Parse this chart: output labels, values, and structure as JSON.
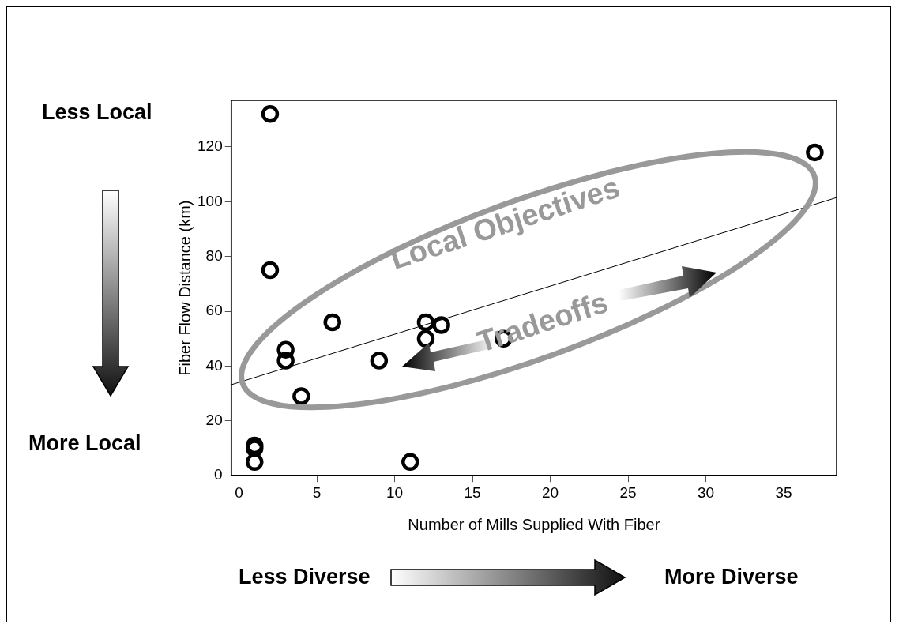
{
  "chart_data": {
    "type": "scatter",
    "xlabel": "Number of Mills Supplied With Fiber",
    "ylabel": "Fiber Flow Distance (km)",
    "xlim": [
      -0.5,
      38.4
    ],
    "ylim": [
      0,
      137
    ],
    "xticks": [
      0,
      5,
      10,
      15,
      20,
      25,
      30,
      35
    ],
    "yticks": [
      0,
      20,
      40,
      60,
      80,
      100,
      120
    ],
    "grid": false,
    "legend": false,
    "series": [
      {
        "type": "scatter",
        "marker": "circle",
        "color": "#000000",
        "x": [
          2,
          2,
          6,
          3,
          3,
          4,
          1,
          1,
          1,
          9,
          11,
          12,
          12,
          13,
          17,
          37
        ],
        "values": [
          132,
          75,
          56,
          46,
          42,
          29,
          11,
          10,
          5,
          42,
          5,
          56,
          50,
          55,
          50,
          118
        ]
      },
      {
        "type": "line",
        "marker": "none",
        "color": "#000000",
        "x": [
          -0.5,
          38.4
        ],
        "values": [
          33.2,
          101.5
        ]
      }
    ],
    "annotations": [
      "Less Local",
      "More Local",
      "Less Diverse",
      "More Diverse",
      "Local Objectives",
      "Tradeoffs"
    ]
  }
}
